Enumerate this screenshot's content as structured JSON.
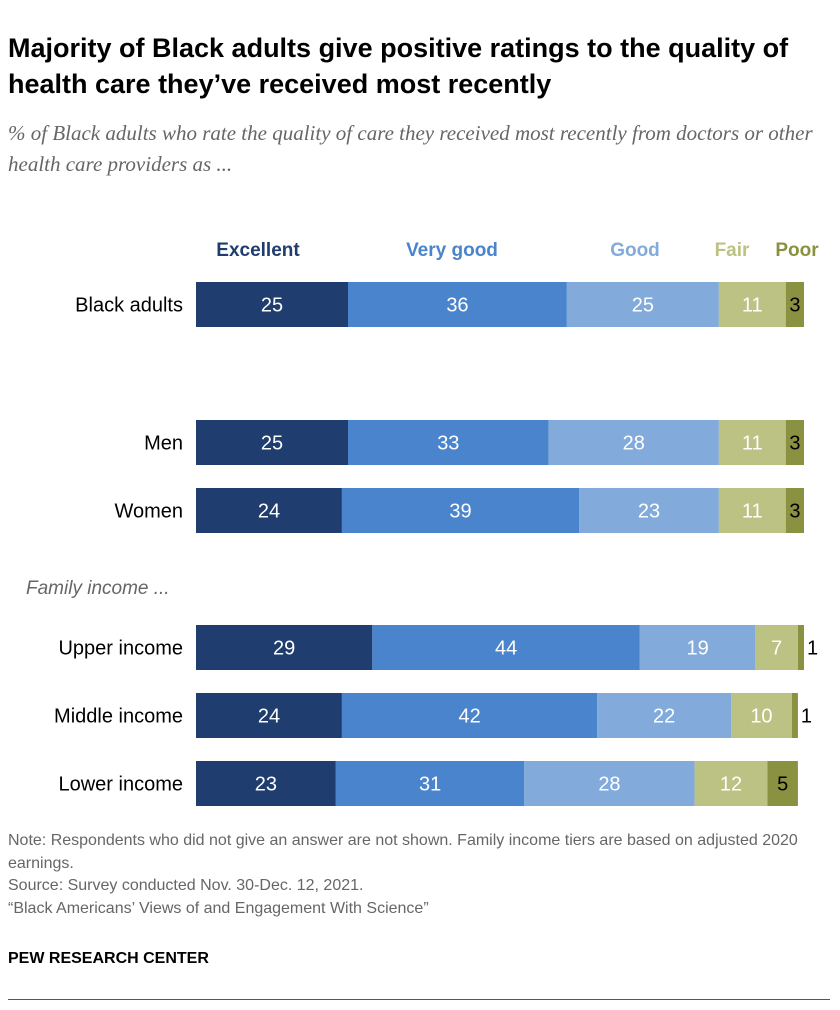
{
  "title": "Majority of Black adults give positive ratings to the quality of health care they’ve received most recently",
  "subtitle": "% of Black adults who rate the quality of care they received most recently from doctors or other health care providers as ...",
  "chart_data": {
    "type": "bar",
    "orientation": "horizontal-stacked",
    "series_names": [
      "Excellent",
      "Very good",
      "Good",
      "Fair",
      "Poor"
    ],
    "colors": [
      "#1f3d6e",
      "#4a84cc",
      "#82abdc",
      "#bcc283",
      "#8a9140"
    ],
    "group_label": "Family income ...",
    "categories": [
      "Black adults",
      "Men",
      "Women",
      "Upper income",
      "Middle income",
      "Lower income"
    ],
    "values": [
      [
        25,
        36,
        25,
        11,
        3
      ],
      [
        25,
        33,
        28,
        11,
        3
      ],
      [
        24,
        39,
        23,
        11,
        3
      ],
      [
        29,
        44,
        19,
        7,
        1
      ],
      [
        24,
        42,
        22,
        10,
        1
      ],
      [
        23,
        31,
        28,
        12,
        5
      ]
    ],
    "xlim": [
      0,
      100
    ],
    "legend": "top"
  },
  "notes": [
    "Note: Respondents who did not give an answer are not shown. Family income tiers are based on adjusted 2020 earnings.",
    "Source: Survey conducted Nov. 30-Dec. 12, 2021.",
    "“Black Americans’ Views of and Engagement With Science”"
  ],
  "brand": "PEW RESEARCH CENTER"
}
